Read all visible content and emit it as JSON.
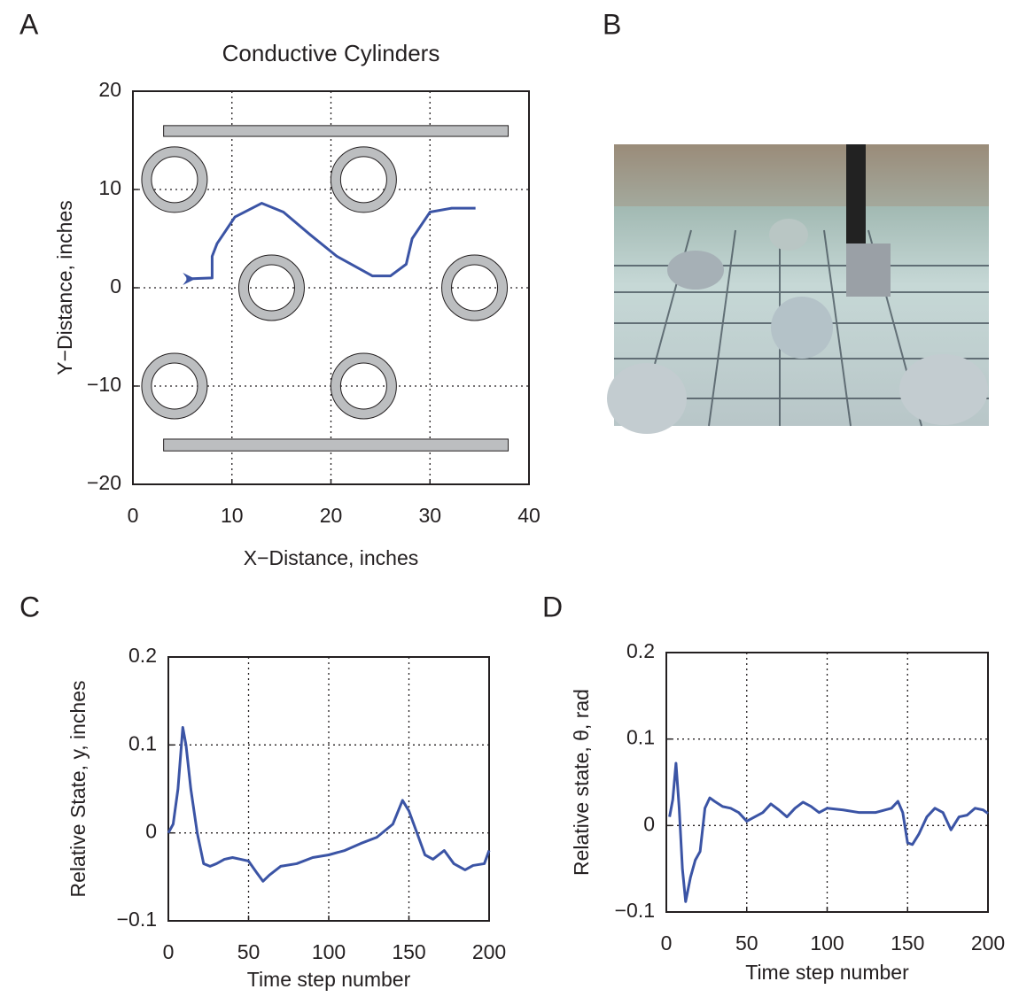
{
  "chart_data": [
    {
      "type": "line",
      "label": "A",
      "title": "Conductive Cylinders",
      "xlabel": "X−Distance, inches",
      "ylabel": "Y−Distance, inches",
      "xlim": [
        0,
        40
      ],
      "ylim": [
        -20,
        20
      ],
      "xticks": [
        0,
        10,
        20,
        30,
        40
      ],
      "yticks": [
        {
          "value": -20,
          "label": "−20"
        },
        {
          "value": -10,
          "label": "−10"
        },
        0,
        10,
        20
      ],
      "grid": true,
      "color": "#3b54a5",
      "x": [
        5.4,
        8,
        8,
        8.5,
        10.3,
        13,
        15.2,
        17.9,
        20.6,
        24.2,
        26,
        27.6,
        28.2,
        30,
        32.2,
        34.6
      ],
      "values": [
        0.9,
        1,
        3.2,
        4.5,
        7.2,
        8.6,
        7.7,
        5.4,
        3.2,
        1.2,
        1.2,
        2.4,
        5,
        7.7,
        8.1,
        8.1
      ],
      "cylinders": [
        {
          "x": 4.2,
          "y": 11
        },
        {
          "x": 23.3,
          "y": 11
        },
        {
          "x": 14,
          "y": 0
        },
        {
          "x": 34.5,
          "y": 0
        },
        {
          "x": 4.2,
          "y": -10
        },
        {
          "x": 23.3,
          "y": -10
        }
      ],
      "walls": [
        {
          "x": [
            3.1,
            37.9
          ],
          "y": [
            15.4,
            16.5
          ]
        },
        {
          "x": [
            3.1,
            37.9
          ],
          "y": [
            -16.6,
            -15.4
          ]
        }
      ]
    },
    {
      "type": "image",
      "label": "B"
    },
    {
      "type": "line",
      "label": "C",
      "xlabel": "Time step number",
      "ylabel": "Relative State, y, inches",
      "xlim": [
        0,
        200
      ],
      "ylim": [
        -0.1,
        0.2
      ],
      "xticks": [
        0,
        50,
        100,
        150,
        200
      ],
      "yticks": [
        {
          "value": -0.1,
          "label": "−0.1"
        },
        0,
        0.1,
        0.2
      ],
      "grid": true,
      "color": "#3b54a5",
      "x": [
        0,
        3,
        6,
        9,
        11,
        14,
        18,
        22,
        26,
        30,
        35,
        40,
        45,
        50,
        55,
        59,
        63,
        70,
        80,
        90,
        100,
        110,
        120,
        130,
        140,
        146,
        150,
        155,
        160,
        165,
        172,
        178,
        185,
        190,
        197,
        200
      ],
      "values": [
        0,
        0.01,
        0.05,
        0.12,
        0.1,
        0.05,
        0,
        -0.035,
        -0.038,
        -0.035,
        -0.03,
        -0.028,
        -0.03,
        -0.032,
        -0.045,
        -0.055,
        -0.048,
        -0.038,
        -0.035,
        -0.028,
        -0.025,
        -0.02,
        -0.012,
        -0.005,
        0.01,
        0.037,
        0.025,
        0,
        -0.025,
        -0.03,
        -0.02,
        -0.035,
        -0.042,
        -0.037,
        -0.035,
        -0.02
      ]
    },
    {
      "type": "line",
      "label": "D",
      "xlabel": "Time step number",
      "ylabel": "Relative state, θ, rad",
      "xlim": [
        0,
        200
      ],
      "ylim": [
        -0.1,
        0.2
      ],
      "xticks": [
        0,
        50,
        100,
        150,
        200
      ],
      "yticks": [
        {
          "value": -0.1,
          "label": "−0.1"
        },
        0,
        0.1,
        0.2
      ],
      "grid": true,
      "color": "#3b54a5",
      "x": [
        2,
        4,
        6,
        8,
        10,
        12,
        15,
        18,
        21,
        24,
        27,
        30,
        35,
        40,
        45,
        50,
        55,
        60,
        65,
        70,
        75,
        80,
        85,
        90,
        95,
        100,
        110,
        120,
        130,
        140,
        144,
        147,
        150,
        153,
        157,
        162,
        167,
        172,
        177,
        182,
        187,
        192,
        197,
        200
      ],
      "values": [
        0.01,
        0.03,
        0.072,
        0.02,
        -0.05,
        -0.088,
        -0.06,
        -0.04,
        -0.03,
        0.02,
        0.032,
        0.028,
        0.022,
        0.02,
        0.015,
        0.005,
        0.01,
        0.015,
        0.025,
        0.018,
        0.01,
        0.02,
        0.027,
        0.022,
        0.015,
        0.02,
        0.018,
        0.015,
        0.015,
        0.02,
        0.028,
        0.015,
        -0.02,
        -0.022,
        -0.01,
        0.01,
        0.02,
        0.015,
        -0.005,
        0.01,
        0.012,
        0.02,
        0.018,
        0.014
      ]
    }
  ]
}
